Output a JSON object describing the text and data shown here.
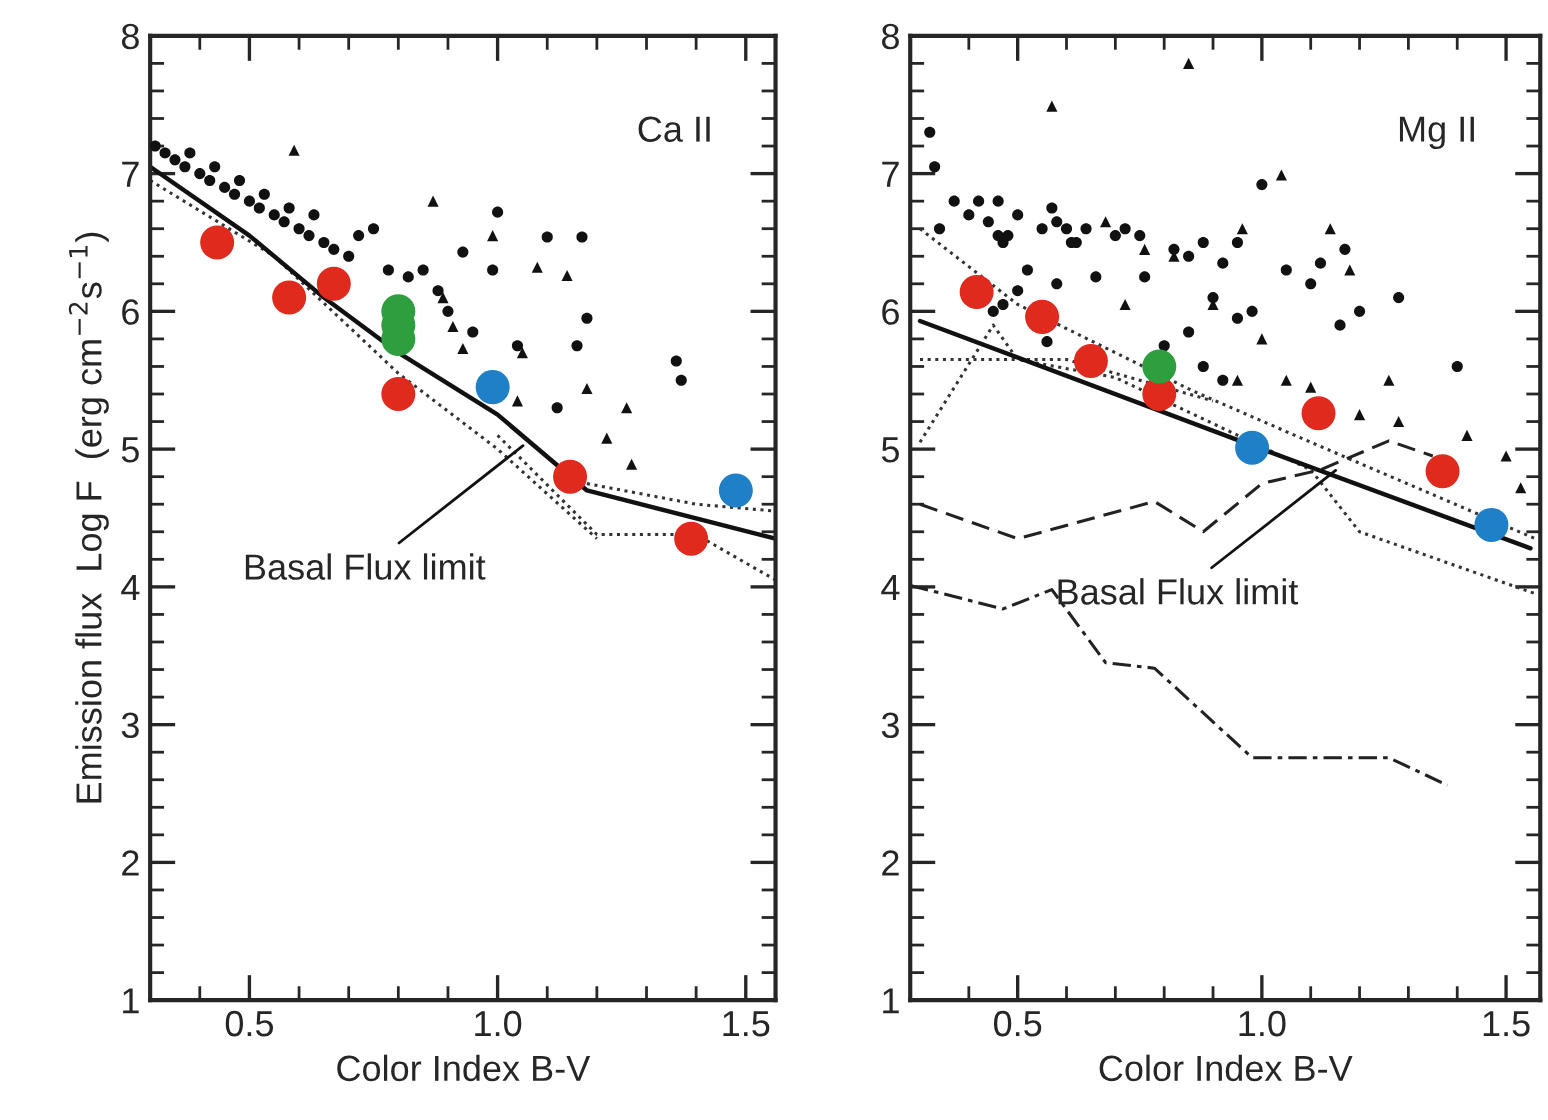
{
  "chart_data": [
    {
      "type": "scatter",
      "xlabel": "Color Index B-V",
      "ylabel": "Emission flux  Log F  (erg cm$^{−2}$s$^{−1}$)",
      "xlim": [
        0.3,
        1.56
      ],
      "ylim": [
        1,
        8
      ],
      "xticks": [
        {
          "value": 0.4,
          "label": null
        },
        {
          "value": 0.5,
          "label": "0.5"
        },
        {
          "value": 0.6,
          "label": null
        },
        {
          "value": 0.7,
          "label": null
        },
        {
          "value": 0.8,
          "label": null
        },
        {
          "value": 0.9,
          "label": null
        },
        {
          "value": 1.0,
          "label": "1.0"
        },
        {
          "value": 1.1,
          "label": null
        },
        {
          "value": 1.2,
          "label": null
        },
        {
          "value": 1.3,
          "label": null
        },
        {
          "value": 1.4,
          "label": null
        },
        {
          "value": 1.5,
          "label": "1.5"
        }
      ],
      "yticks": [
        1,
        {
          "value": 1.2,
          "label": null
        },
        {
          "value": 1.4,
          "label": null
        },
        {
          "value": 1.6,
          "label": null
        },
        {
          "value": 1.8,
          "label": null
        },
        2,
        {
          "value": 2.2,
          "label": null
        },
        {
          "value": 2.4,
          "label": null
        },
        {
          "value": 2.6,
          "label": null
        },
        {
          "value": 2.8,
          "label": null
        },
        3,
        {
          "value": 3.2,
          "label": null
        },
        {
          "value": 3.4,
          "label": null
        },
        {
          "value": 3.6,
          "label": null
        },
        {
          "value": 3.8,
          "label": null
        },
        4,
        {
          "value": 4.2,
          "label": null
        },
        {
          "value": 4.4,
          "label": null
        },
        {
          "value": 4.6,
          "label": null
        },
        {
          "value": 4.8,
          "label": null
        },
        5,
        {
          "value": 5.2,
          "label": null
        },
        {
          "value": 5.4,
          "label": null
        },
        {
          "value": 5.6,
          "label": null
        },
        {
          "value": 5.8,
          "label": null
        },
        6,
        {
          "value": 6.2,
          "label": null
        },
        {
          "value": 6.4,
          "label": null
        },
        {
          "value": 6.6,
          "label": null
        },
        {
          "value": 6.8,
          "label": null
        },
        7,
        {
          "value": 7.2,
          "label": null
        },
        {
          "value": 7.4,
          "label": null
        },
        {
          "value": 7.6,
          "label": null
        },
        {
          "value": 7.8,
          "label": null
        },
        8
      ],
      "annotations": [
        "Ca II",
        {
          "text": "Basal Flux limit",
          "x": 1.06,
          "y": 5.05
        }
      ],
      "series": [
        {
          "type": "line",
          "line_style": "dotted",
          "color": "#333333",
          "x": [
            0.3,
            0.55,
            0.8,
            1.0,
            1.2
          ],
          "values": [
            6.95,
            6.4,
            5.55,
            5.0,
            4.35
          ]
        },
        {
          "type": "line",
          "line_style": "dotted",
          "color": "#333333",
          "x": [
            1.0,
            1.2,
            1.4,
            1.56
          ],
          "values": [
            5.1,
            4.38,
            4.38,
            4.05
          ]
        },
        {
          "type": "line",
          "line_style": "dotted",
          "color": "#333333",
          "x": [
            1.18,
            1.4,
            1.56
          ],
          "values": [
            4.75,
            4.6,
            4.55
          ]
        },
        {
          "type": "line",
          "line_style": "solid",
          "color": "#111111",
          "x": [
            0.3,
            0.5,
            0.65,
            0.8,
            1.0,
            1.18,
            1.56
          ],
          "values": [
            7.05,
            6.55,
            6.1,
            5.7,
            5.25,
            4.7,
            4.35
          ]
        },
        {
          "type": "scatter",
          "marker": "circle",
          "color": "#111111",
          "x": [
            0.31,
            0.33,
            0.35,
            0.37,
            0.38,
            0.4,
            0.42,
            0.43,
            0.45,
            0.47,
            0.48,
            0.5,
            0.52,
            0.53,
            0.55,
            0.57,
            0.58,
            0.6,
            0.62,
            0.63,
            0.65,
            0.67,
            0.7,
            0.72,
            0.75,
            0.78,
            0.82,
            0.85,
            0.88,
            0.9,
            0.93,
            0.95,
            0.99,
            1.0,
            1.1,
            1.17,
            1.16,
            1.18,
            1.12,
            1.36,
            1.37,
            1.04
          ],
          "values": [
            7.2,
            7.15,
            7.1,
            7.05,
            7.15,
            7.0,
            6.95,
            7.05,
            6.9,
            6.85,
            6.95,
            6.8,
            6.75,
            6.85,
            6.7,
            6.65,
            6.75,
            6.6,
            6.55,
            6.7,
            6.5,
            6.45,
            6.4,
            6.55,
            6.6,
            6.3,
            6.25,
            6.3,
            6.15,
            6.0,
            6.43,
            5.85,
            6.3,
            6.72,
            6.54,
            6.54,
            5.75,
            5.95,
            5.3,
            5.64,
            5.5,
            5.75
          ]
        },
        {
          "type": "scatter",
          "marker": "triangle",
          "color": "#111111",
          "x": [
            0.59,
            0.87,
            0.99,
            1.08,
            1.14,
            1.05,
            1.18,
            1.26,
            1.27,
            1.22,
            0.89,
            0.91,
            0.93,
            1.04
          ],
          "values": [
            7.17,
            6.8,
            6.55,
            6.32,
            6.26,
            5.7,
            5.44,
            5.3,
            4.89,
            5.08,
            6.1,
            5.89,
            5.73,
            5.35
          ]
        },
        {
          "type": "bubble",
          "color": "#e02a1e",
          "x": [
            0.435,
            0.58,
            0.67,
            0.8,
            1.146,
            1.39
          ],
          "values": [
            6.5,
            6.1,
            6.2,
            5.4,
            4.8,
            4.35
          ],
          "sizes": [
            1,
            1,
            1,
            1,
            1,
            1
          ]
        },
        {
          "type": "bubble",
          "color": "#2e9e3e",
          "x": [
            0.8,
            0.8,
            0.8
          ],
          "values": [
            6.0,
            5.9,
            5.8
          ],
          "sizes": [
            1,
            1,
            1
          ]
        },
        {
          "type": "bubble",
          "color": "#1f80c8",
          "x": [
            0.99,
            1.48
          ],
          "values": [
            5.45,
            4.7
          ],
          "sizes": [
            1,
            1
          ]
        }
      ]
    },
    {
      "type": "scatter",
      "xlabel": "Color Index B-V",
      "xlim": [
        0.28,
        1.57
      ],
      "ylim": [
        1,
        8
      ],
      "xticks": [
        {
          "value": 0.4,
          "label": null
        },
        {
          "value": 0.5,
          "label": "0.5"
        },
        {
          "value": 0.6,
          "label": null
        },
        {
          "value": 0.7,
          "label": null
        },
        {
          "value": 0.8,
          "label": null
        },
        {
          "value": 0.9,
          "label": null
        },
        {
          "value": 1.0,
          "label": "1.0"
        },
        {
          "value": 1.1,
          "label": null
        },
        {
          "value": 1.2,
          "label": null
        },
        {
          "value": 1.3,
          "label": null
        },
        {
          "value": 1.4,
          "label": null
        },
        {
          "value": 1.5,
          "label": "1.5"
        }
      ],
      "yticks": [
        1,
        {
          "value": 1.2,
          "label": null
        },
        {
          "value": 1.4,
          "label": null
        },
        {
          "value": 1.6,
          "label": null
        },
        {
          "value": 1.8,
          "label": null
        },
        2,
        {
          "value": 2.2,
          "label": null
        },
        {
          "value": 2.4,
          "label": null
        },
        {
          "value": 2.6,
          "label": null
        },
        {
          "value": 2.8,
          "label": null
        },
        3,
        {
          "value": 3.2,
          "label": null
        },
        {
          "value": 3.4,
          "label": null
        },
        {
          "value": 3.6,
          "label": null
        },
        {
          "value": 3.8,
          "label": null
        },
        4,
        {
          "value": 4.2,
          "label": null
        },
        {
          "value": 4.4,
          "label": null
        },
        {
          "value": 4.6,
          "label": null
        },
        {
          "value": 4.8,
          "label": null
        },
        5,
        {
          "value": 5.2,
          "label": null
        },
        {
          "value": 5.4,
          "label": null
        },
        {
          "value": 5.6,
          "label": null
        },
        {
          "value": 5.8,
          "label": null
        },
        6,
        {
          "value": 6.2,
          "label": null
        },
        {
          "value": 6.4,
          "label": null
        },
        {
          "value": 6.6,
          "label": null
        },
        {
          "value": 6.8,
          "label": null
        },
        7,
        {
          "value": 7.2,
          "label": null
        },
        {
          "value": 7.4,
          "label": null
        },
        {
          "value": 7.6,
          "label": null
        },
        {
          "value": 7.8,
          "label": null
        },
        8
      ],
      "annotations": [
        "Mg II",
        {
          "text": "Basal Flux limit",
          "x": 1.16,
          "y": 4.87
        }
      ],
      "series": [
        {
          "type": "line",
          "line_style": "dotted",
          "color": "#333333",
          "x": [
            0.3,
            0.5,
            0.86,
            1.1,
            1.56
          ],
          "values": [
            6.6,
            6.05,
            5.42,
            5.05,
            4.35
          ]
        },
        {
          "type": "line",
          "line_style": "dotted",
          "color": "#333333",
          "x": [
            0.3,
            0.45,
            0.5,
            0.7,
            1.1,
            1.2,
            1.56
          ],
          "values": [
            5.05,
            5.9,
            5.65,
            5.52,
            4.85,
            4.4,
            3.95
          ]
        },
        {
          "type": "line",
          "line_style": "dotted",
          "color": "#333333",
          "x": [
            0.3,
            0.6,
            0.9
          ],
          "values": [
            5.65,
            5.65,
            5.35
          ]
        },
        {
          "type": "line",
          "line_style": "dashed",
          "color": "#222222",
          "x": [
            0.3,
            0.5,
            0.78,
            0.88,
            1.0,
            1.12,
            1.26,
            1.35
          ],
          "values": [
            4.6,
            4.35,
            4.62,
            4.4,
            4.75,
            4.85,
            5.06,
            4.95
          ]
        },
        {
          "type": "line",
          "line_style": "dashdot",
          "color": "#222222",
          "x": [
            0.28,
            0.47,
            0.57,
            0.68,
            0.78,
            0.98,
            1.26,
            1.38
          ],
          "values": [
            4.01,
            3.84,
            3.98,
            3.45,
            3.41,
            2.76,
            2.76,
            2.56
          ]
        },
        {
          "type": "line",
          "line_style": "solid",
          "color": "#111111",
          "x": [
            0.3,
            1.0,
            1.55
          ],
          "values": [
            5.93,
            5.0,
            4.28
          ]
        },
        {
          "type": "scatter",
          "marker": "circle",
          "color": "#111111",
          "x": [
            0.33,
            0.34,
            0.37,
            0.4,
            0.42,
            0.44,
            0.46,
            0.48,
            0.5,
            0.52,
            0.55,
            0.57,
            0.58,
            0.6,
            0.62,
            0.64,
            0.58,
            0.5,
            0.56,
            0.66,
            0.7,
            0.72,
            0.75,
            0.76,
            0.82,
            0.85,
            0.88,
            0.92,
            0.95,
            0.9,
            0.95,
            0.85,
            0.8,
            0.98,
            1.0,
            1.05,
            1.1,
            1.12,
            1.17,
            1.2,
            1.16,
            1.28,
            0.88,
            0.92,
            1.4,
            0.32,
            0.46,
            0.47,
            0.61,
            0.45,
            0.47
          ],
          "values": [
            7.05,
            6.6,
            6.8,
            6.7,
            6.8,
            6.65,
            6.8,
            6.55,
            6.7,
            6.3,
            6.6,
            6.75,
            6.65,
            6.6,
            6.5,
            6.6,
            6.2,
            6.15,
            5.78,
            6.25,
            6.55,
            6.6,
            6.55,
            6.25,
            6.45,
            6.4,
            6.5,
            6.35,
            6.5,
            6.1,
            5.95,
            5.85,
            5.75,
            6.0,
            6.92,
            6.3,
            6.2,
            6.35,
            6.45,
            6.0,
            5.9,
            6.1,
            5.6,
            5.5,
            5.6,
            7.3,
            6.55,
            6.5,
            6.5,
            6.0,
            6.05
          ]
        },
        {
          "type": "scatter",
          "marker": "triangle",
          "color": "#111111",
          "x": [
            0.57,
            0.85,
            1.04,
            0.68,
            0.76,
            0.82,
            0.96,
            1.14,
            1.18,
            0.9,
            1.0,
            1.05,
            1.1,
            1.2,
            1.26,
            1.28,
            1.42,
            1.5,
            1.53,
            0.95,
            0.72
          ],
          "values": [
            7.49,
            7.8,
            6.99,
            6.65,
            6.45,
            6.4,
            6.6,
            6.6,
            6.3,
            6.05,
            5.8,
            5.5,
            5.45,
            5.25,
            5.5,
            5.2,
            5.1,
            4.95,
            4.72,
            5.5,
            6.05
          ]
        },
        {
          "type": "bubble",
          "color": "#e02a1e",
          "x": [
            0.416,
            0.55,
            0.65,
            0.79,
            1.116,
            1.37
          ],
          "values": [
            6.14,
            5.96,
            5.64,
            5.4,
            5.26,
            4.84
          ],
          "sizes": [
            1,
            1,
            1,
            1,
            1,
            1
          ]
        },
        {
          "type": "bubble",
          "color": "#2e9e3e",
          "x": [
            0.79
          ],
          "values": [
            5.6
          ],
          "sizes": [
            1
          ]
        },
        {
          "type": "bubble",
          "color": "#1f80c8",
          "x": [
            0.98,
            1.47
          ],
          "values": [
            5.01,
            4.45
          ],
          "sizes": [
            1,
            1
          ]
        }
      ]
    }
  ]
}
